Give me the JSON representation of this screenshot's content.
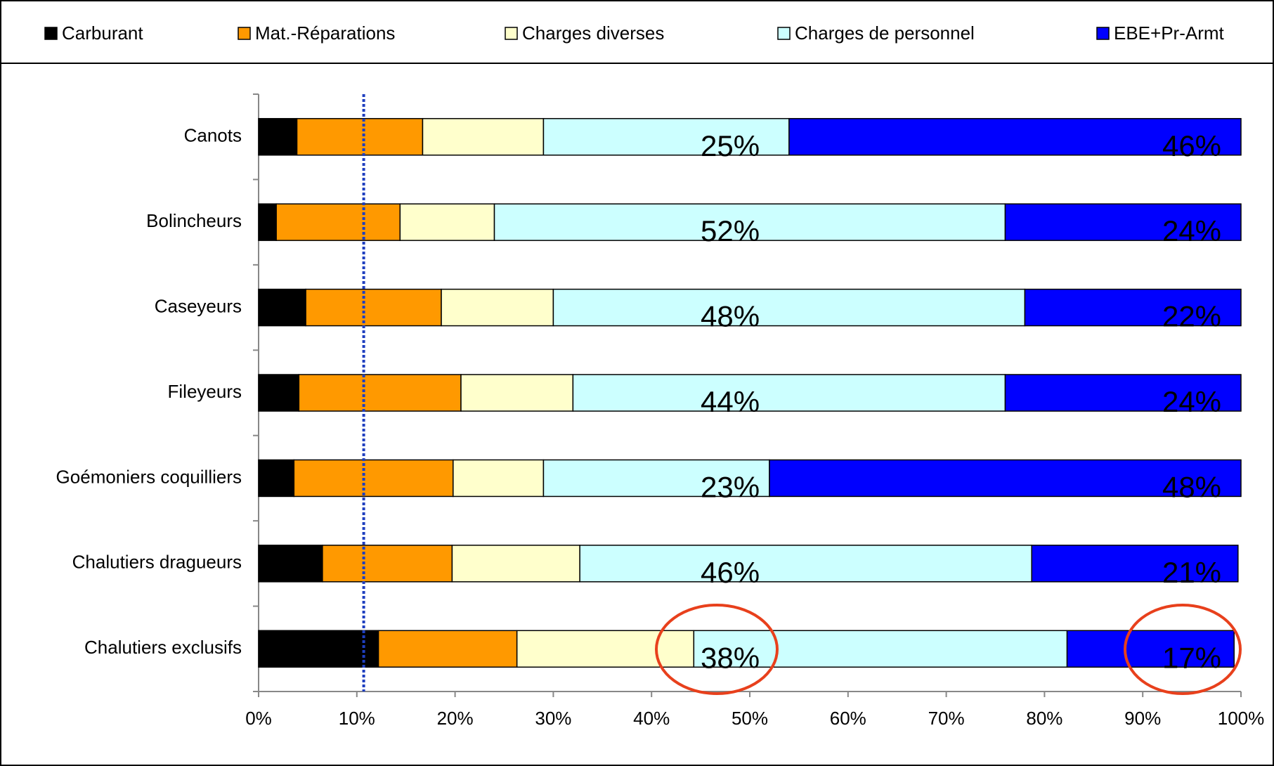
{
  "chart_data": {
    "type": "stacked-bar-horizontal",
    "categories": [
      "Canots",
      "Bolincheurs",
      "Caseyeurs",
      "Fileyeurs",
      "Goémoniers coquilliers",
      "Chalutiers dragueurs",
      "Chalutiers exclusifs"
    ],
    "series": [
      {
        "name": "Carburant",
        "color": "#000000",
        "values": [
          3.9,
          1.8,
          4.8,
          4.1,
          3.6,
          6.5,
          12.2
        ]
      },
      {
        "name": "Mat.-Réparations",
        "color": "#ff9900",
        "values": [
          12.8,
          12.6,
          13.8,
          16.5,
          16.2,
          13.2,
          14.1
        ]
      },
      {
        "name": "Charges diverses",
        "color": "#ffffcc",
        "values": [
          12.3,
          9.6,
          11.4,
          11.4,
          9.2,
          13,
          18
        ]
      },
      {
        "name": "Charges de personnel",
        "color": "#ccffff",
        "values": [
          25,
          52,
          48,
          44,
          23,
          46,
          38
        ],
        "value_labels": [
          "25%",
          "52%",
          "48%",
          "44%",
          "23%",
          "46%",
          "38%"
        ]
      },
      {
        "name": "EBE+Pr-Armt",
        "color": "#0000ff",
        "values": [
          46,
          24,
          22,
          24,
          48,
          21,
          17
        ],
        "value_labels": [
          "46%",
          "24%",
          "22%",
          "24%",
          "48%",
          "21%",
          "17%"
        ]
      }
    ],
    "xlim": [
      0,
      100
    ],
    "xticks": [
      {
        "value": 0,
        "label": "0%"
      },
      {
        "value": 10,
        "label": "10%"
      },
      {
        "value": 20,
        "label": "20%"
      },
      {
        "value": 30,
        "label": "30%"
      },
      {
        "value": 40,
        "label": "40%"
      },
      {
        "value": 50,
        "label": "50%"
      },
      {
        "value": 60,
        "label": "60%"
      },
      {
        "value": 70,
        "label": "70%"
      },
      {
        "value": 80,
        "label": "80%"
      },
      {
        "value": 90,
        "label": "90%"
      },
      {
        "value": 100,
        "label": "100%"
      }
    ],
    "reference_line": {
      "value": 10.7,
      "color": "#1f3fbf"
    }
  }
}
